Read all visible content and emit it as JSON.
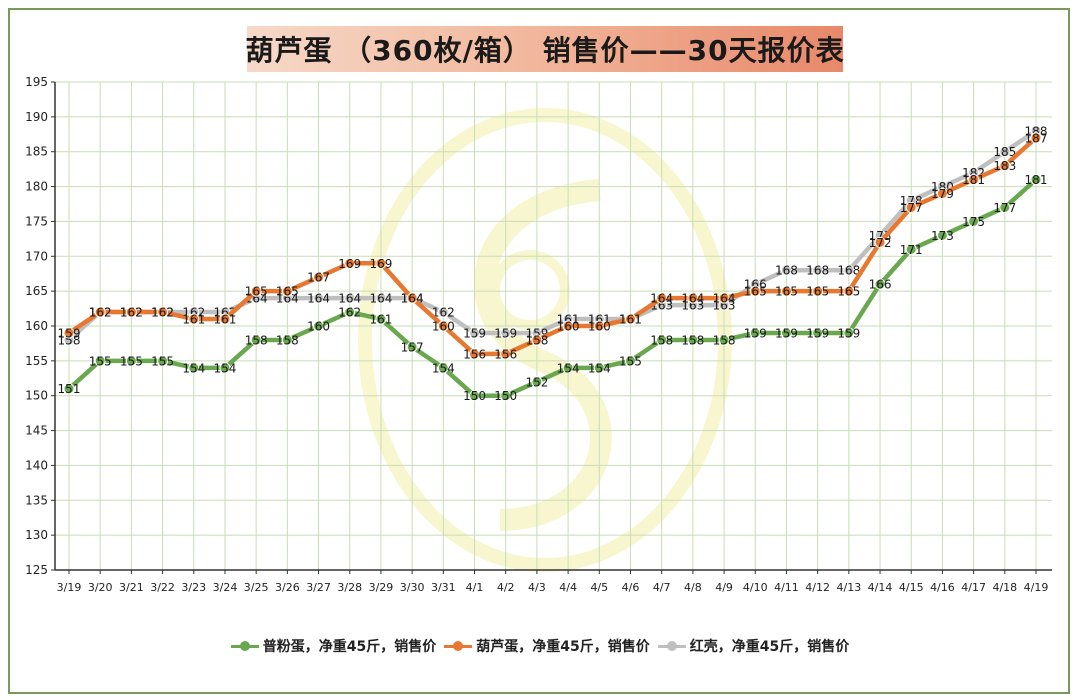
{
  "title": "葫芦蛋 （360枚/箱） 销售价——30天报价表",
  "colors": {
    "series_0": "#6aa84f",
    "series_1": "#e8782f",
    "series_2": "#bfbfbf",
    "grid": "#c9dcb8",
    "axis": "#333333",
    "watermark": "#f3f0a8"
  },
  "chart_data": {
    "type": "line",
    "title": "葫芦蛋 （360枚/箱） 销售价——30天报价表",
    "xlabel": "",
    "ylabel": "",
    "ylim": [
      125,
      195
    ],
    "ytick_step": 5,
    "grid": true,
    "legend_position": "bottom",
    "categories": [
      "3/19",
      "3/20",
      "3/21",
      "3/22",
      "3/23",
      "3/24",
      "3/25",
      "3/26",
      "3/27",
      "3/28",
      "3/29",
      "3/30",
      "3/31",
      "4/1",
      "4/2",
      "4/3",
      "4/4",
      "4/5",
      "4/6",
      "4/7",
      "4/8",
      "4/9",
      "4/10",
      "4/11",
      "4/12",
      "4/13",
      "4/14",
      "4/15",
      "4/16",
      "4/17",
      "4/18",
      "4/19"
    ],
    "series": [
      {
        "name": "普粉蛋，净重45斤，销售价",
        "values": [
          151,
          155,
          155,
          155,
          154,
          154,
          158,
          158,
          160,
          162,
          161,
          157,
          154,
          150,
          150,
          152,
          154,
          154,
          155,
          158,
          158,
          158,
          159,
          159,
          159,
          159,
          166,
          171,
          173,
          175,
          177,
          181
        ]
      },
      {
        "name": "葫芦蛋，净重45斤，销售价",
        "values": [
          159,
          162,
          162,
          162,
          161,
          161,
          165,
          165,
          167,
          169,
          169,
          164,
          160,
          156,
          156,
          158,
          160,
          160,
          161,
          164,
          164,
          164,
          165,
          165,
          165,
          165,
          172,
          177,
          179,
          181,
          183,
          187
        ]
      },
      {
        "name": "红壳，净重45斤，销售价",
        "values": [
          158,
          162,
          162,
          162,
          162,
          162,
          164,
          164,
          164,
          164,
          164,
          164,
          162,
          159,
          159,
          159,
          161,
          161,
          161,
          163,
          163,
          163,
          166,
          168,
          168,
          168,
          173,
          178,
          180,
          182,
          185,
          188
        ]
      }
    ]
  }
}
